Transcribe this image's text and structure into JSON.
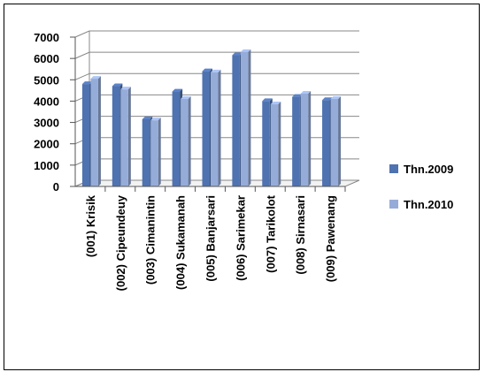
{
  "chart_data": {
    "type": "bar",
    "categories": [
      "(001) Krisik",
      "(002) Cipeundeuy",
      "(003) Cimanintin",
      "(004) Sukamanah",
      "(005) Banjarsari",
      "(006) Sarimekar",
      "(007) Tarikolot",
      "(008) Sirnasari",
      "(009) Pawenang"
    ],
    "series": [
      {
        "name": "Thn.2009",
        "color": "#4F72B0",
        "values": [
          4800,
          4700,
          3150,
          4450,
          5400,
          6150,
          4000,
          4200,
          4050
        ]
      },
      {
        "name": "Thn.2010",
        "color": "#96ACD8",
        "values": [
          5050,
          4550,
          3100,
          4100,
          5350,
          6300,
          3850,
          4350,
          4100
        ]
      }
    ],
    "ylim": [
      0,
      7000
    ],
    "yticks": [
      "0",
      "1000",
      "2000",
      "3000",
      "4000",
      "5000",
      "6000",
      "7000"
    ],
    "grid": true,
    "legend": "right"
  }
}
